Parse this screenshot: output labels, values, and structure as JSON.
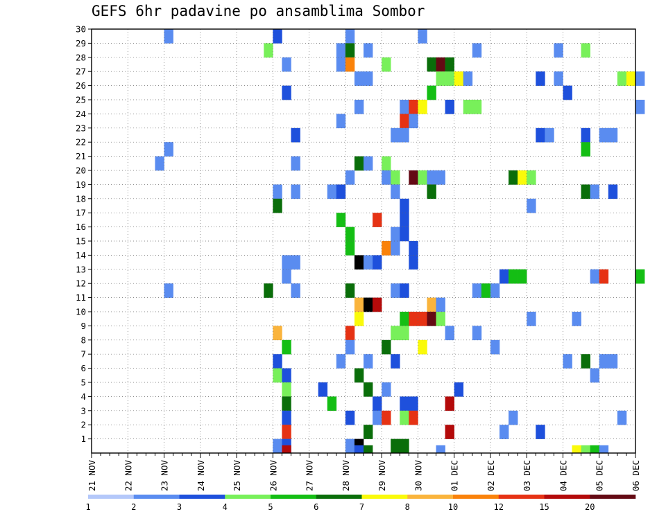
{
  "chart_data": {
    "type": "heatmap",
    "title": "GEFS 6hr padavine po ansamblima Sombor",
    "x_tick_labels": [
      "21 NOV",
      "22 NOV",
      "23 NOV",
      "24 NOV",
      "25 NOV",
      "26 NOV",
      "27 NOV",
      "28 NOV",
      "29 NOV",
      "30 NOV",
      "01 DEC",
      "02 DEC",
      "03 DEC",
      "04 DEC",
      "05 DEC",
      "06 DEC"
    ],
    "y_tick_labels": [
      "1",
      "2",
      "3",
      "4",
      "5",
      "6",
      "7",
      "8",
      "9",
      "10",
      "11",
      "12",
      "13",
      "14",
      "15",
      "16",
      "17",
      "18",
      "19",
      "20",
      "21",
      "22",
      "23",
      "24",
      "25",
      "26",
      "27",
      "28",
      "29",
      "30"
    ],
    "xlim": [
      0,
      60
    ],
    "ylim": [
      0,
      30
    ],
    "grid": true,
    "colorbar": {
      "labels": [
        "1",
        "2",
        "3",
        "4",
        "5",
        "6",
        "7",
        "8",
        "10",
        "12",
        "15",
        "20"
      ],
      "colors": [
        "#b4c8fa",
        "#5a8cf0",
        "#1e50dc",
        "#78f05a",
        "#14be14",
        "#0a6e0a",
        "#fafa0a",
        "#fab43c",
        "#fa820a",
        "#e63214",
        "#b40a0a",
        "#640a14"
      ]
    },
    "cells": [
      [
        8,
        29,
        1
      ],
      [
        20,
        29,
        2
      ],
      [
        28,
        29,
        1
      ],
      [
        36,
        29,
        1
      ],
      [
        19,
        28,
        3
      ],
      [
        27,
        28,
        1
      ],
      [
        28,
        28,
        5
      ],
      [
        30,
        28,
        1
      ],
      [
        42,
        28,
        1
      ],
      [
        51,
        28,
        1
      ],
      [
        54,
        28,
        3
      ],
      [
        21,
        27,
        1
      ],
      [
        27,
        27,
        1
      ],
      [
        28,
        27,
        8
      ],
      [
        32,
        27,
        3
      ],
      [
        37,
        27,
        5
      ],
      [
        38,
        27,
        11
      ],
      [
        39,
        27,
        5
      ],
      [
        29,
        26,
        1
      ],
      [
        30,
        26,
        1
      ],
      [
        38,
        26,
        3
      ],
      [
        39,
        26,
        3
      ],
      [
        40,
        26,
        6
      ],
      [
        41,
        26,
        1
      ],
      [
        49,
        26,
        2
      ],
      [
        51,
        26,
        1
      ],
      [
        58,
        26,
        3
      ],
      [
        59,
        26,
        6
      ],
      [
        60,
        26,
        1
      ],
      [
        21,
        25,
        2
      ],
      [
        37,
        25,
        4
      ],
      [
        52,
        25,
        2
      ],
      [
        29,
        24,
        1
      ],
      [
        34,
        24,
        1
      ],
      [
        35,
        24,
        9
      ],
      [
        36,
        24,
        6
      ],
      [
        39,
        24,
        2
      ],
      [
        41,
        24,
        3
      ],
      [
        42,
        24,
        3
      ],
      [
        60,
        24,
        1
      ],
      [
        27,
        23,
        1
      ],
      [
        34,
        23,
        9
      ],
      [
        35,
        23,
        1
      ],
      [
        22,
        22,
        2
      ],
      [
        33,
        22,
        1
      ],
      [
        34,
        22,
        1
      ],
      [
        49,
        22,
        2
      ],
      [
        50,
        22,
        1
      ],
      [
        54,
        22,
        2
      ],
      [
        56,
        22,
        1
      ],
      [
        57,
        22,
        1
      ],
      [
        8,
        21,
        1
      ],
      [
        54,
        21,
        4
      ],
      [
        7,
        20,
        1
      ],
      [
        22,
        20,
        1
      ],
      [
        29,
        20,
        5
      ],
      [
        30,
        20,
        1
      ],
      [
        32,
        20,
        3
      ],
      [
        28,
        19,
        1
      ],
      [
        32,
        19,
        1
      ],
      [
        33,
        19,
        3
      ],
      [
        35,
        19,
        11
      ],
      [
        36,
        19,
        3
      ],
      [
        37,
        19,
        1
      ],
      [
        38,
        19,
        1
      ],
      [
        46,
        19,
        5
      ],
      [
        47,
        19,
        6
      ],
      [
        48,
        19,
        3
      ],
      [
        20,
        18,
        1
      ],
      [
        22,
        18,
        1
      ],
      [
        26,
        18,
        1
      ],
      [
        27,
        18,
        2
      ],
      [
        33,
        18,
        1
      ],
      [
        37,
        18,
        5
      ],
      [
        54,
        18,
        5
      ],
      [
        55,
        18,
        1
      ],
      [
        57,
        18,
        2
      ],
      [
        20,
        17,
        5
      ],
      [
        34,
        17,
        2
      ],
      [
        48,
        17,
        1
      ],
      [
        27,
        16,
        4
      ],
      [
        31,
        16,
        9
      ],
      [
        34,
        16,
        2
      ],
      [
        28,
        15,
        4
      ],
      [
        33,
        15,
        1
      ],
      [
        34,
        15,
        2
      ],
      [
        28,
        14,
        4
      ],
      [
        32,
        14,
        8
      ],
      [
        33,
        14,
        1
      ],
      [
        35,
        14,
        2
      ],
      [
        21,
        13,
        1
      ],
      [
        22,
        13,
        1
      ],
      [
        29,
        13,
        12
      ],
      [
        30,
        13,
        1
      ],
      [
        31,
        13,
        2
      ],
      [
        35,
        13,
        2
      ],
      [
        21,
        12,
        1
      ],
      [
        45,
        12,
        2
      ],
      [
        46,
        12,
        4
      ],
      [
        47,
        12,
        4
      ],
      [
        55,
        12,
        1
      ],
      [
        56,
        12,
        9
      ],
      [
        60,
        12,
        4
      ],
      [
        8,
        11,
        1
      ],
      [
        19,
        11,
        5
      ],
      [
        22,
        11,
        1
      ],
      [
        28,
        11,
        5
      ],
      [
        33,
        11,
        1
      ],
      [
        34,
        11,
        2
      ],
      [
        42,
        11,
        1
      ],
      [
        43,
        11,
        4
      ],
      [
        44,
        11,
        1
      ],
      [
        29,
        10,
        7
      ],
      [
        30,
        10,
        12
      ],
      [
        31,
        10,
        10
      ],
      [
        37,
        10,
        7
      ],
      [
        38,
        10,
        1
      ],
      [
        29,
        9,
        6
      ],
      [
        34,
        9,
        4
      ],
      [
        35,
        9,
        9
      ],
      [
        36,
        9,
        9
      ],
      [
        37,
        9,
        11
      ],
      [
        38,
        9,
        3
      ],
      [
        48,
        9,
        1
      ],
      [
        53,
        9,
        1
      ],
      [
        20,
        8,
        7
      ],
      [
        28,
        8,
        9
      ],
      [
        33,
        8,
        3
      ],
      [
        34,
        8,
        3
      ],
      [
        39,
        8,
        1
      ],
      [
        42,
        8,
        1
      ],
      [
        21,
        7,
        4
      ],
      [
        28,
        7,
        1
      ],
      [
        32,
        7,
        5
      ],
      [
        36,
        7,
        6
      ],
      [
        44,
        7,
        1
      ],
      [
        20,
        6,
        2
      ],
      [
        27,
        6,
        1
      ],
      [
        30,
        6,
        1
      ],
      [
        33,
        6,
        2
      ],
      [
        52,
        6,
        1
      ],
      [
        54,
        6,
        5
      ],
      [
        56,
        6,
        1
      ],
      [
        57,
        6,
        1
      ],
      [
        20,
        5,
        3
      ],
      [
        21,
        5,
        2
      ],
      [
        29,
        5,
        5
      ],
      [
        55,
        5,
        1
      ],
      [
        21,
        4,
        3
      ],
      [
        25,
        4,
        2
      ],
      [
        30,
        4,
        5
      ],
      [
        32,
        4,
        1
      ],
      [
        40,
        4,
        2
      ],
      [
        21,
        3,
        5
      ],
      [
        26,
        3,
        4
      ],
      [
        31,
        3,
        2
      ],
      [
        34,
        3,
        2
      ],
      [
        35,
        3,
        2
      ],
      [
        39,
        3,
        10
      ],
      [
        21,
        2,
        2
      ],
      [
        28,
        2,
        2
      ],
      [
        31,
        2,
        1
      ],
      [
        32,
        2,
        9
      ],
      [
        34,
        2,
        3
      ],
      [
        35,
        2,
        9
      ],
      [
        46,
        2,
        1
      ],
      [
        58,
        2,
        1
      ],
      [
        21,
        1,
        9
      ],
      [
        30,
        1,
        5
      ],
      [
        39,
        1,
        10
      ],
      [
        45,
        1,
        1
      ],
      [
        49,
        1,
        2
      ],
      [
        20,
        0,
        1
      ],
      [
        21,
        0,
        2
      ],
      [
        28,
        0,
        1
      ],
      [
        29,
        0,
        15
      ],
      [
        33,
        0,
        5
      ],
      [
        34,
        0,
        5
      ]
    ],
    "cells_partial": [
      [
        20,
        -1,
        1
      ],
      [
        21,
        -1,
        10
      ],
      [
        29,
        -1,
        2
      ],
      [
        30,
        -1,
        5
      ],
      [
        38,
        -1,
        1
      ],
      [
        53,
        -1,
        6
      ],
      [
        54,
        -1,
        3
      ],
      [
        55,
        -1,
        4
      ],
      [
        56,
        -1,
        1
      ]
    ]
  }
}
